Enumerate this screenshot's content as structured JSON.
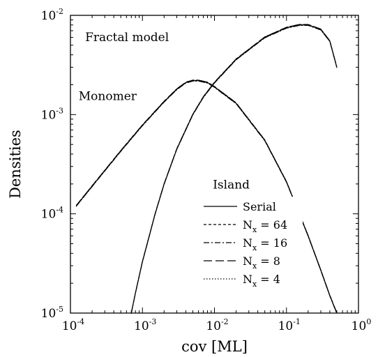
{
  "chart_data": {
    "type": "line",
    "xscale": "log",
    "yscale": "log",
    "xlim": [
      0.0001,
      1
    ],
    "ylim": [
      1e-05,
      0.01
    ],
    "xlabel": "cov [ML]",
    "ylabel": "Densities",
    "x_ticks": [
      {
        "value": 0.0001,
        "base": "10",
        "exp": "-4"
      },
      {
        "value": 0.001,
        "base": "10",
        "exp": "-3"
      },
      {
        "value": 0.01,
        "base": "10",
        "exp": "-2"
      },
      {
        "value": 0.1,
        "base": "10",
        "exp": "-1"
      },
      {
        "value": 1,
        "base": "10",
        "exp": "0"
      }
    ],
    "y_ticks": [
      {
        "value": 1e-05,
        "base": "10",
        "exp": "-5"
      },
      {
        "value": 0.0001,
        "base": "10",
        "exp": "-4"
      },
      {
        "value": 0.001,
        "base": "10",
        "exp": "-3"
      },
      {
        "value": 0.01,
        "base": "10",
        "exp": "-2"
      }
    ],
    "annotations": [
      {
        "text": "Fractal model",
        "x": 0.00016,
        "y": 0.0055
      },
      {
        "text": "Monomer",
        "x": 0.00013,
        "y": 0.0014
      },
      {
        "text": "Island",
        "x": 0.0095,
        "y": 0.00018
      }
    ],
    "legend": {
      "placement": "bottom-center",
      "entries": [
        {
          "label_main": "Serial",
          "label_sub": "",
          "label_rest": "",
          "dash": "solid"
        },
        {
          "label_main": "N",
          "label_sub": "x",
          "label_rest": " = 64",
          "dash": "dashed"
        },
        {
          "label_main": "N",
          "label_sub": "x",
          "label_rest": " = 16",
          "dash": "dashdot"
        },
        {
          "label_main": "N",
          "label_sub": "x",
          "label_rest": " = 8",
          "dash": "longdash"
        },
        {
          "label_main": "N",
          "label_sub": "x",
          "label_rest": " = 4",
          "dash": "dotted"
        }
      ]
    },
    "series": [
      {
        "dash": "solid",
        "curve": "monomer",
        "x": [
          0.00012,
          0.0002,
          0.0005,
          0.001,
          0.002,
          0.003,
          0.004,
          0.005,
          0.006,
          0.008,
          0.01,
          0.02,
          0.05,
          0.1,
          0.2,
          0.3,
          0.4,
          0.5
        ],
        "y": [
          0.00012,
          0.00019,
          0.00043,
          0.00078,
          0.00135,
          0.0018,
          0.0021,
          0.0022,
          0.0022,
          0.0021,
          0.0019,
          0.0013,
          0.00055,
          0.00021,
          6e-05,
          2.7e-05,
          1.5e-05,
          1e-05
        ]
      },
      {
        "dash": "solid",
        "curve": "island",
        "x": [
          0.0007,
          0.0008,
          0.001,
          0.0015,
          0.002,
          0.003,
          0.005,
          0.007,
          0.01,
          0.02,
          0.05,
          0.1,
          0.15,
          0.2,
          0.3,
          0.4,
          0.5
        ],
        "y": [
          1e-05,
          1.6e-05,
          3.3e-05,
          0.0001,
          0.0002,
          0.00045,
          0.001,
          0.0015,
          0.0021,
          0.0036,
          0.006,
          0.0075,
          0.008,
          0.008,
          0.0072,
          0.0055,
          0.003
        ]
      }
    ]
  }
}
